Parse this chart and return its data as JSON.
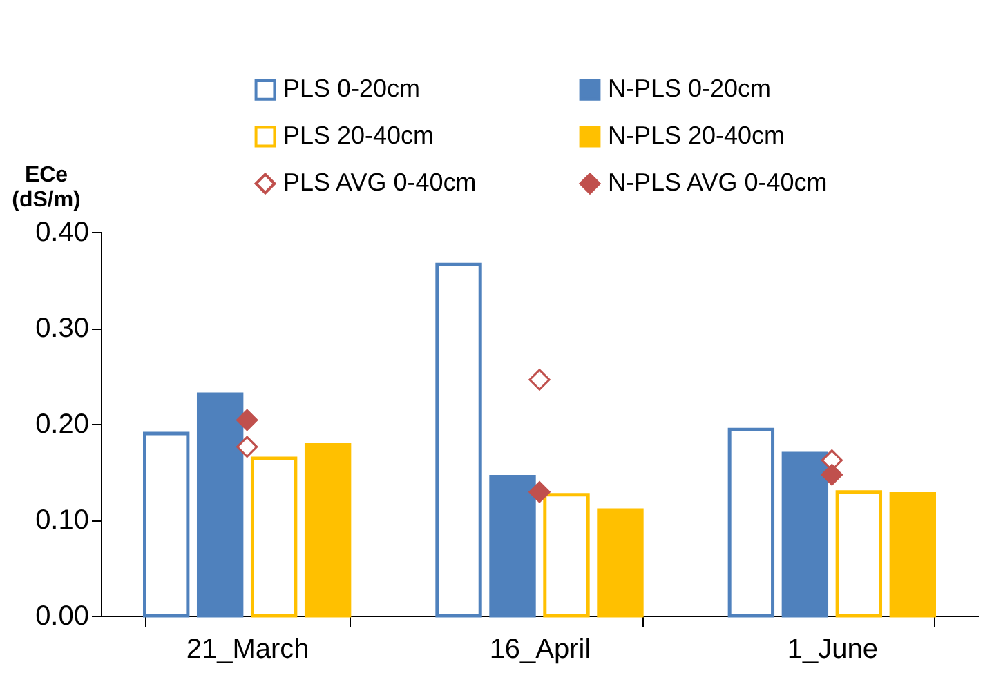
{
  "chart_data": {
    "type": "bar",
    "ylabel": "ECe\n(dS/m)",
    "categories": [
      "21_March",
      "16_April",
      "1_June"
    ],
    "ylim": [
      0,
      0.4
    ],
    "yticks": [
      {
        "value": 0,
        "label": "0.00"
      },
      {
        "value": 0.1,
        "label": "0.10"
      },
      {
        "value": 0.2,
        "label": "0.20"
      },
      {
        "value": 0.3,
        "label": "0.30"
      },
      {
        "value": 0.4,
        "label": "0.40"
      }
    ],
    "grid": false,
    "legend": "top",
    "series": [
      {
        "name": "PLS 0-20cm",
        "type": "bar",
        "color": "#4f81bd",
        "values": [
          0.19,
          0.366,
          0.194
        ]
      },
      {
        "name": "N-PLS 0-20cm",
        "type": "bar",
        "color": "#4f81bd",
        "values": [
          0.231,
          0.145,
          0.169
        ]
      },
      {
        "name": "PLS 20-40cm",
        "type": "bar",
        "color": "#ffc000",
        "values": [
          0.164,
          0.126,
          0.129
        ]
      },
      {
        "name": "N-PLS 20-40cm",
        "type": "bar",
        "color": "#ffc000",
        "values": [
          0.178,
          0.11,
          0.127
        ]
      },
      {
        "name": "PLS AVG 0-40cm",
        "type": "scatter",
        "marker": "diamond",
        "color": "#c0504d",
        "values": [
          0.176,
          0.246,
          0.162
        ]
      },
      {
        "name": "N-PLS AVG 0-40cm",
        "type": "scatter",
        "marker": "diamond",
        "color": "#c0504d",
        "values": [
          0.204,
          0.129,
          0.147
        ]
      }
    ]
  }
}
